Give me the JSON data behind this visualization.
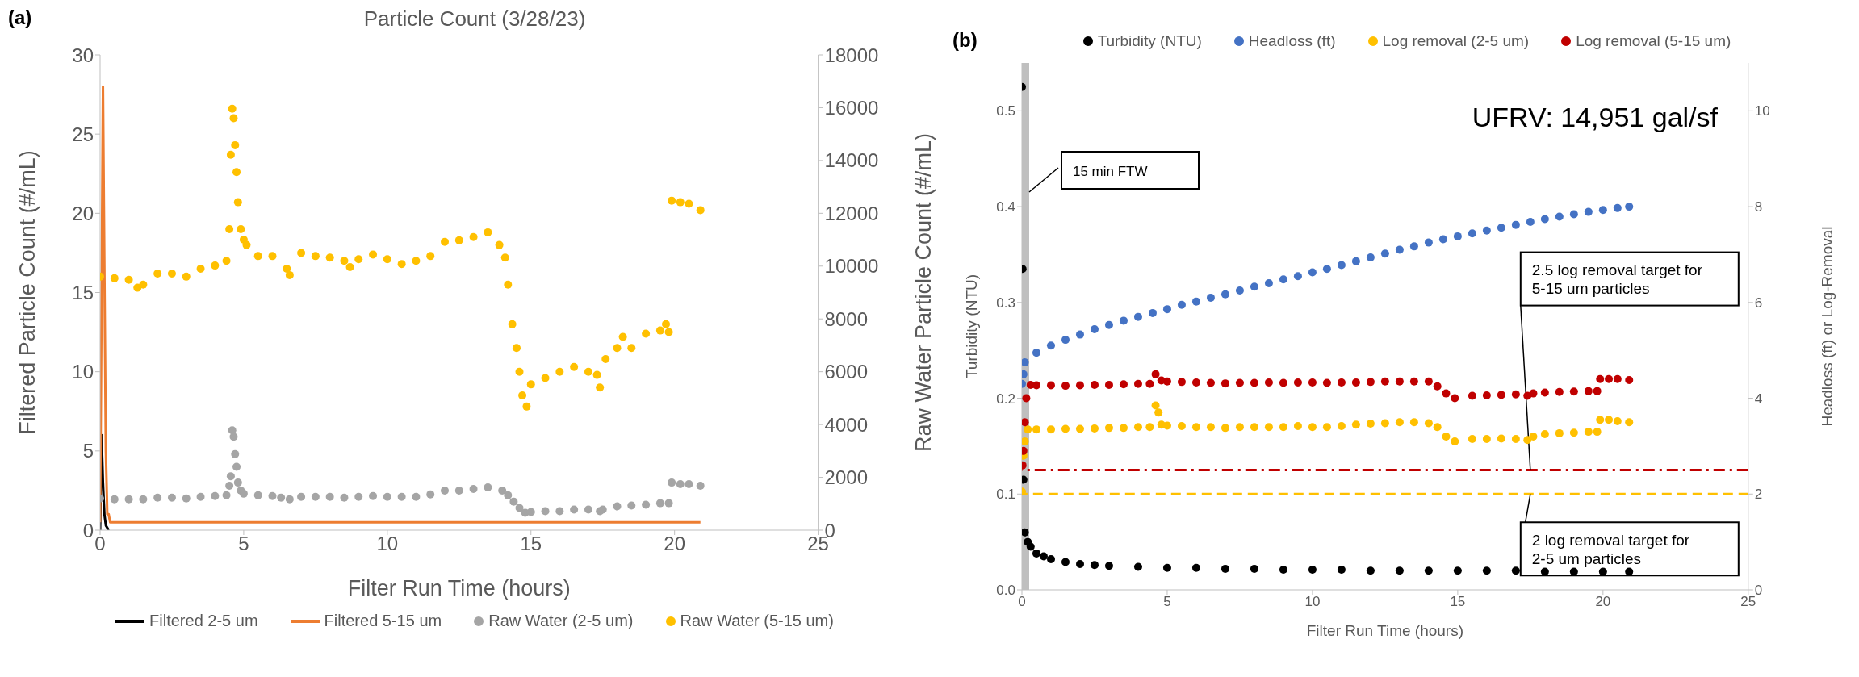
{
  "chart_data": [
    {
      "type": "scatter",
      "title": "Particle Count (3/28/23)",
      "xlabel": "Filter Run Time (hours)",
      "ylabel": "Filtered Particle Count (#/mL)",
      "y2label": "Raw Water Particle Count (#/mL)",
      "annotations": [
        "(a)"
      ],
      "xlim": [
        0,
        25
      ],
      "xticks": [
        0,
        5,
        10,
        15,
        20,
        25
      ],
      "ylim": [
        0,
        30
      ],
      "yticks": [
        0,
        5,
        10,
        15,
        20,
        25,
        30
      ],
      "y2lim": [
        0,
        18000
      ],
      "y2ticks": [
        0,
        2000,
        4000,
        6000,
        8000,
        10000,
        12000,
        14000,
        16000,
        18000
      ],
      "legend": "bottom",
      "series": [
        {
          "name": "Filtered 2-5 um",
          "type": "line",
          "marker": "none",
          "color": "#000000",
          "x": [
            0,
            0.05,
            0.1,
            0.15,
            0.2,
            0.3
          ],
          "values": [
            0,
            6,
            3,
            1,
            0.3,
            0
          ]
        },
        {
          "name": "Filtered 5-15 um",
          "type": "line",
          "marker": "none",
          "color": "#ed7d31",
          "x": [
            0,
            0.1,
            0.2,
            0.25,
            0.3,
            0.35,
            20.9
          ],
          "values": [
            0.5,
            28,
            5,
            1,
            1,
            0.5,
            0.5
          ]
        },
        {
          "name": "Raw Water (2-5 um)",
          "marker": "circle",
          "axis": "y2",
          "color": "#a5a5a5",
          "x": [
            0,
            0.5,
            1,
            1.5,
            2,
            2.5,
            3,
            3.5,
            4,
            4.4,
            4.5,
            4.55,
            4.6,
            4.65,
            4.7,
            4.75,
            4.8,
            4.9,
            5,
            5.5,
            6,
            6.3,
            6.6,
            7,
            7.5,
            8,
            8.5,
            9,
            9.5,
            10,
            10.5,
            11,
            11.5,
            12,
            12.5,
            13,
            13.5,
            14,
            14.2,
            14.4,
            14.6,
            14.8,
            15,
            15.5,
            16,
            16.5,
            17,
            17.4,
            17.5,
            18,
            18.5,
            19,
            19.5,
            19.8,
            19.9,
            20.2,
            20.5,
            20.9
          ],
          "values": [
            1200,
            1170,
            1170,
            1170,
            1230,
            1230,
            1200,
            1260,
            1290,
            1320,
            1680,
            2040,
            3780,
            3540,
            2880,
            2400,
            1800,
            1500,
            1380,
            1320,
            1290,
            1230,
            1170,
            1260,
            1260,
            1260,
            1230,
            1260,
            1290,
            1260,
            1260,
            1260,
            1350,
            1500,
            1500,
            1560,
            1620,
            1500,
            1320,
            1080,
            840,
            660,
            690,
            720,
            720,
            780,
            780,
            720,
            780,
            900,
            930,
            960,
            1020,
            1020,
            1800,
            1740,
            1740,
            1680
          ]
        },
        {
          "name": "Raw Water (5-15 um)",
          "marker": "circle",
          "axis": "y2",
          "color": "#ffc000",
          "x": [
            0,
            0.5,
            1,
            1.3,
            1.5,
            2,
            2.5,
            3,
            3.5,
            4,
            4.4,
            4.5,
            4.55,
            4.6,
            4.65,
            4.7,
            4.75,
            4.8,
            4.9,
            5,
            5.1,
            5.5,
            6,
            6.5,
            6.6,
            7,
            7.5,
            8,
            8.5,
            8.7,
            9,
            9.5,
            10,
            10.5,
            11,
            11.5,
            12,
            12.5,
            13,
            13.5,
            13.9,
            14.1,
            14.2,
            14.35,
            14.5,
            14.6,
            14.7,
            14.85,
            15,
            15.5,
            16,
            16.5,
            17,
            17.3,
            17.4,
            17.6,
            18,
            18.2,
            18.5,
            19,
            19.5,
            19.7,
            19.8,
            19.9,
            20.2,
            20.5,
            20.9
          ],
          "values": [
            9600,
            9540,
            9480,
            9180,
            9300,
            9720,
            9720,
            9600,
            9900,
            10020,
            10200,
            11400,
            14220,
            15960,
            15600,
            14580,
            13560,
            12420,
            11400,
            11000,
            10800,
            10380,
            10380,
            9900,
            9660,
            10500,
            10380,
            10320,
            10200,
            9960,
            10260,
            10440,
            10260,
            10080,
            10200,
            10380,
            10920,
            10980,
            11100,
            11280,
            10800,
            10320,
            9300,
            7800,
            6900,
            6000,
            5100,
            4680,
            5520,
            5760,
            6000,
            6180,
            6000,
            5880,
            5400,
            6480,
            6900,
            7320,
            6900,
            7440,
            7560,
            7800,
            7500,
            12480,
            12420,
            12360,
            12120
          ]
        }
      ]
    },
    {
      "type": "scatter",
      "xlabel": "Filter Run Time (hours)",
      "ylabel": "Turbidity (NTU)",
      "y2label": "Headloss (ft) or Log-Removal",
      "annotations": [
        "(b)",
        "UFRV: 14,951 gal/sf"
      ],
      "xlim": [
        0,
        25
      ],
      "xticks": [
        0,
        5,
        10,
        15,
        20,
        25
      ],
      "ylim": [
        0,
        0.55
      ],
      "yticks": [
        {
          "value": 0,
          "label": "0.0"
        },
        0.1,
        0.2,
        0.3,
        0.4,
        0.5
      ],
      "y2lim": [
        0,
        11
      ],
      "y2ticks": [
        0,
        2,
        4,
        6,
        8,
        10
      ],
      "legend": "top",
      "series": [
        {
          "name": "Turbidity (NTU)",
          "marker": "circle",
          "color": "#000000",
          "x": [
            0,
            0.02,
            0.05,
            0.1,
            0.2,
            0.3,
            0.5,
            0.75,
            1,
            1.5,
            2,
            2.5,
            3,
            4,
            5,
            6,
            7,
            8,
            9,
            10,
            11,
            12,
            13,
            14,
            15,
            16,
            17,
            18,
            19,
            20,
            20.9
          ],
          "values": [
            0.525,
            0.335,
            0.115,
            0.06,
            0.05,
            0.045,
            0.038,
            0.035,
            0.032,
            0.029,
            0.027,
            0.026,
            0.025,
            0.024,
            0.023,
            0.023,
            0.022,
            0.022,
            0.021,
            0.021,
            0.021,
            0.02,
            0.02,
            0.02,
            0.02,
            0.02,
            0.02,
            0.019,
            0.019,
            0.019,
            0.019
          ]
        },
        {
          "name": "Headloss (ft)",
          "marker": "circle",
          "axis": "y2",
          "color": "#4472c4",
          "x": [
            0,
            0.05,
            0.1,
            0.5,
            1,
            1.5,
            2,
            2.5,
            3,
            3.5,
            4,
            4.5,
            5,
            5.5,
            6,
            6.5,
            7,
            7.5,
            8,
            8.5,
            9,
            9.5,
            10,
            10.5,
            11,
            11.5,
            12,
            12.5,
            13,
            13.5,
            14,
            14.5,
            15,
            15.5,
            16,
            16.5,
            17,
            17.5,
            18,
            18.5,
            19,
            19.5,
            20,
            20.5,
            20.9
          ],
          "values": [
            4.3,
            4.5,
            4.75,
            4.95,
            5.1,
            5.22,
            5.33,
            5.44,
            5.53,
            5.62,
            5.7,
            5.78,
            5.86,
            5.95,
            6.02,
            6.1,
            6.17,
            6.25,
            6.33,
            6.4,
            6.48,
            6.55,
            6.63,
            6.7,
            6.78,
            6.86,
            6.94,
            7.02,
            7.1,
            7.17,
            7.25,
            7.32,
            7.38,
            7.44,
            7.5,
            7.56,
            7.62,
            7.68,
            7.74,
            7.79,
            7.84,
            7.89,
            7.93,
            7.97,
            8.0
          ]
        },
        {
          "name": "Log removal (2-5 um)",
          "marker": "circle",
          "axis": "y2",
          "color": "#ffc000",
          "x": [
            0,
            0.05,
            0.1,
            0.2,
            0.5,
            1,
            1.5,
            2,
            2.5,
            3,
            3.5,
            4,
            4.4,
            4.6,
            4.7,
            4.8,
            5,
            5.5,
            6,
            6.5,
            7,
            7.5,
            8,
            8.5,
            9,
            9.5,
            10,
            10.5,
            11,
            11.5,
            12,
            12.5,
            13,
            13.5,
            14,
            14.3,
            14.6,
            14.9,
            15.5,
            16,
            16.5,
            17,
            17.4,
            17.6,
            18,
            18.5,
            19,
            19.5,
            19.8,
            19.9,
            20.2,
            20.5,
            20.9
          ],
          "values": [
            2.05,
            2.8,
            3.1,
            3.35,
            3.35,
            3.35,
            3.36,
            3.36,
            3.37,
            3.38,
            3.38,
            3.4,
            3.4,
            3.85,
            3.7,
            3.45,
            3.43,
            3.42,
            3.4,
            3.4,
            3.38,
            3.4,
            3.4,
            3.4,
            3.4,
            3.42,
            3.4,
            3.4,
            3.42,
            3.45,
            3.47,
            3.48,
            3.5,
            3.5,
            3.48,
            3.4,
            3.2,
            3.1,
            3.15,
            3.15,
            3.16,
            3.15,
            3.13,
            3.2,
            3.25,
            3.27,
            3.28,
            3.3,
            3.3,
            3.55,
            3.55,
            3.52,
            3.5
          ]
        },
        {
          "name": "Log removal (5-15 um)",
          "marker": "circle",
          "axis": "y2",
          "color": "#c00000",
          "x": [
            0.02,
            0.05,
            0.1,
            0.15,
            0.3,
            0.5,
            1,
            1.5,
            2,
            2.5,
            3,
            3.5,
            4,
            4.4,
            4.6,
            4.8,
            5,
            5.5,
            6,
            6.5,
            7,
            7.5,
            8,
            8.5,
            9,
            9.5,
            10,
            10.5,
            11,
            11.5,
            12,
            12.5,
            13,
            13.5,
            14,
            14.3,
            14.6,
            14.9,
            15.5,
            16,
            16.5,
            17,
            17.4,
            17.6,
            18,
            18.5,
            19,
            19.5,
            19.8,
            19.9,
            20.2,
            20.5,
            20.9
          ],
          "values": [
            2.6,
            2.9,
            3.5,
            4.0,
            4.28,
            4.27,
            4.27,
            4.26,
            4.27,
            4.28,
            4.28,
            4.29,
            4.3,
            4.3,
            4.5,
            4.37,
            4.35,
            4.34,
            4.33,
            4.32,
            4.31,
            4.32,
            4.32,
            4.33,
            4.32,
            4.33,
            4.33,
            4.32,
            4.33,
            4.33,
            4.34,
            4.35,
            4.35,
            4.35,
            4.35,
            4.25,
            4.1,
            4.0,
            4.05,
            4.06,
            4.07,
            4.08,
            4.05,
            4.1,
            4.12,
            4.13,
            4.14,
            4.15,
            4.15,
            4.4,
            4.4,
            4.4,
            4.38
          ]
        }
      ],
      "ref_lines": [
        {
          "axis": "y2",
          "value": 2.5,
          "label": "2.5 log removal target for 5-15 um particles",
          "color": "#c00000",
          "line_style": "dashdot"
        },
        {
          "axis": "y2",
          "value": 2,
          "label": "2 log removal target for 2-5 um particles",
          "color": "#ffc000",
          "line_style": "dashed"
        }
      ],
      "bands": [
        {
          "axis": "x",
          "from": 0,
          "to": 0.25,
          "label": "15 min FTW",
          "color": "#bfbfbf"
        }
      ]
    }
  ]
}
